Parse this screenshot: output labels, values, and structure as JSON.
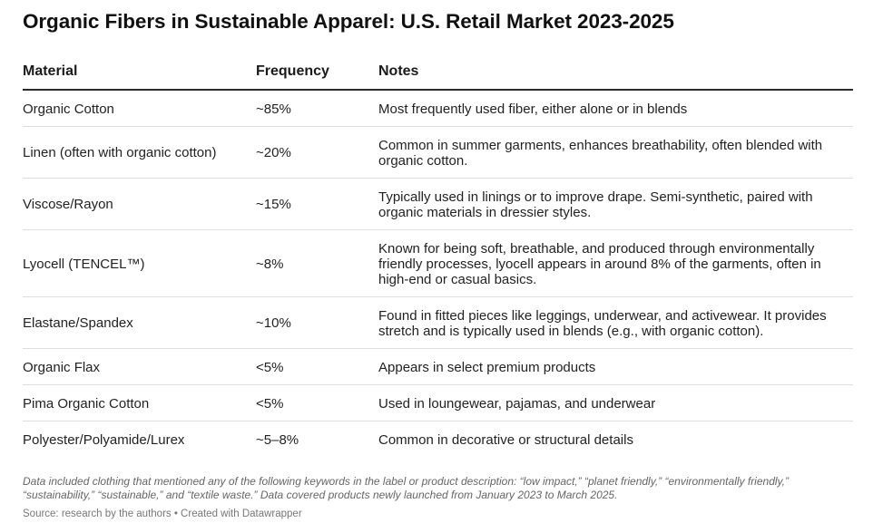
{
  "chart_data": {
    "type": "table",
    "title": "Organic Fibers in Sustainable Apparel: U.S. Retail Market 2023-2025",
    "columns": [
      "Material",
      "Frequency",
      "Notes"
    ],
    "rows": [
      {
        "material": "Organic Cotton",
        "frequency": "~85%",
        "notes": "Most frequently used fiber, either alone or in blends"
      },
      {
        "material": "Linen (often with organic cotton)",
        "frequency": "~20%",
        "notes": "Common in summer garments, enhances breathability, often blended with organic cotton."
      },
      {
        "material": "Viscose/Rayon",
        "frequency": "~15%",
        "notes": "Typically used in linings or to improve drape. Semi-synthetic, paired with organic materials in dressier styles."
      },
      {
        "material": "Lyocell (TENCEL™)",
        "frequency": "~8%",
        "notes": "Known for being soft, breathable, and produced through environmentally friendly processes, lyocell appears in around 8% of the garments, often in high-end or casual basics."
      },
      {
        "material": "Elastane/Spandex",
        "frequency": "~10%",
        "notes": "Found in fitted pieces like leggings, underwear, and activewear. It provides stretch and is typically used in blends (e.g., with organic cotton)."
      },
      {
        "material": "Organic Flax",
        "frequency": "<5%",
        "notes": "Appears in select premium products"
      },
      {
        "material": "Pima Organic Cotton",
        "frequency": "<5%",
        "notes": "Used in loungewear, pajamas, and underwear"
      },
      {
        "material": "Polyester/Polyamide/Lurex",
        "frequency": "~5–8%",
        "notes": "Common in decorative or structural details"
      }
    ],
    "notes_text": "Data included clothing that mentioned any of the following keywords in the label or product description: “low impact,” “planet friendly,” “environmentally friendly,” “sustainability,” “sustainable,” and “textile waste.” Data covered products newly launched from January 2023 to March 2025.",
    "source_text": "Source: research by the authors • Created with Datawrapper"
  }
}
